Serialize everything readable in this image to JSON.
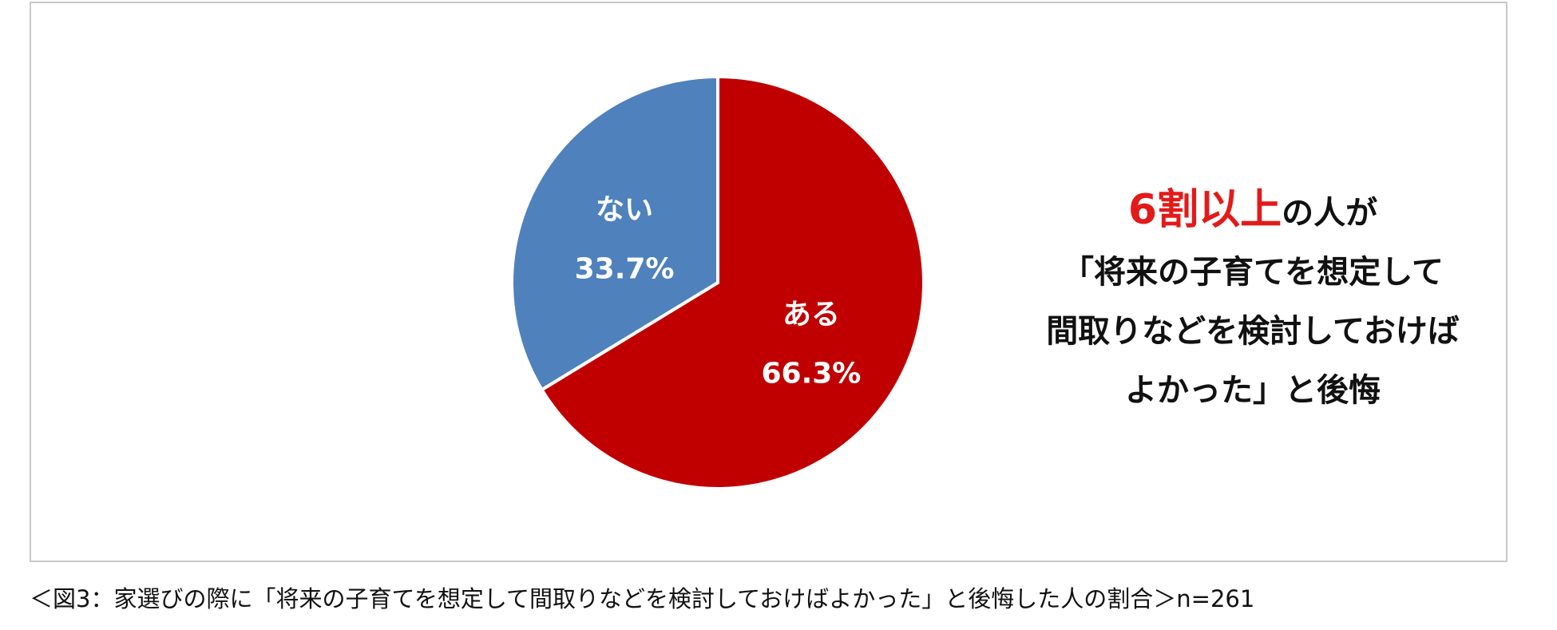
{
  "chart_data": {
    "type": "pie",
    "slices": [
      {
        "label": "ある",
        "value": 66.3,
        "value_label": "66.3%",
        "color": "#c00000"
      },
      {
        "label": "ない",
        "value": 33.7,
        "value_label": "33.7%",
        "color": "#4f81bd"
      }
    ],
    "start": "12 o'clock",
    "direction": "clockwise"
  },
  "annotation": {
    "line1_highlight": "6割以上",
    "line1_rest": "の人が",
    "line2": "「将来の子育てを想定して",
    "line3": "間取りなどを検討しておけば",
    "line4": "よかった」と後悔"
  },
  "caption": "＜図3：家選びの際に「将来の子育てを想定して間取りなどを検討しておけばよかった」と後悔した人の割合＞n=261",
  "colors": {
    "highlight": "#e31a1a",
    "border": "#c8c8c8"
  }
}
